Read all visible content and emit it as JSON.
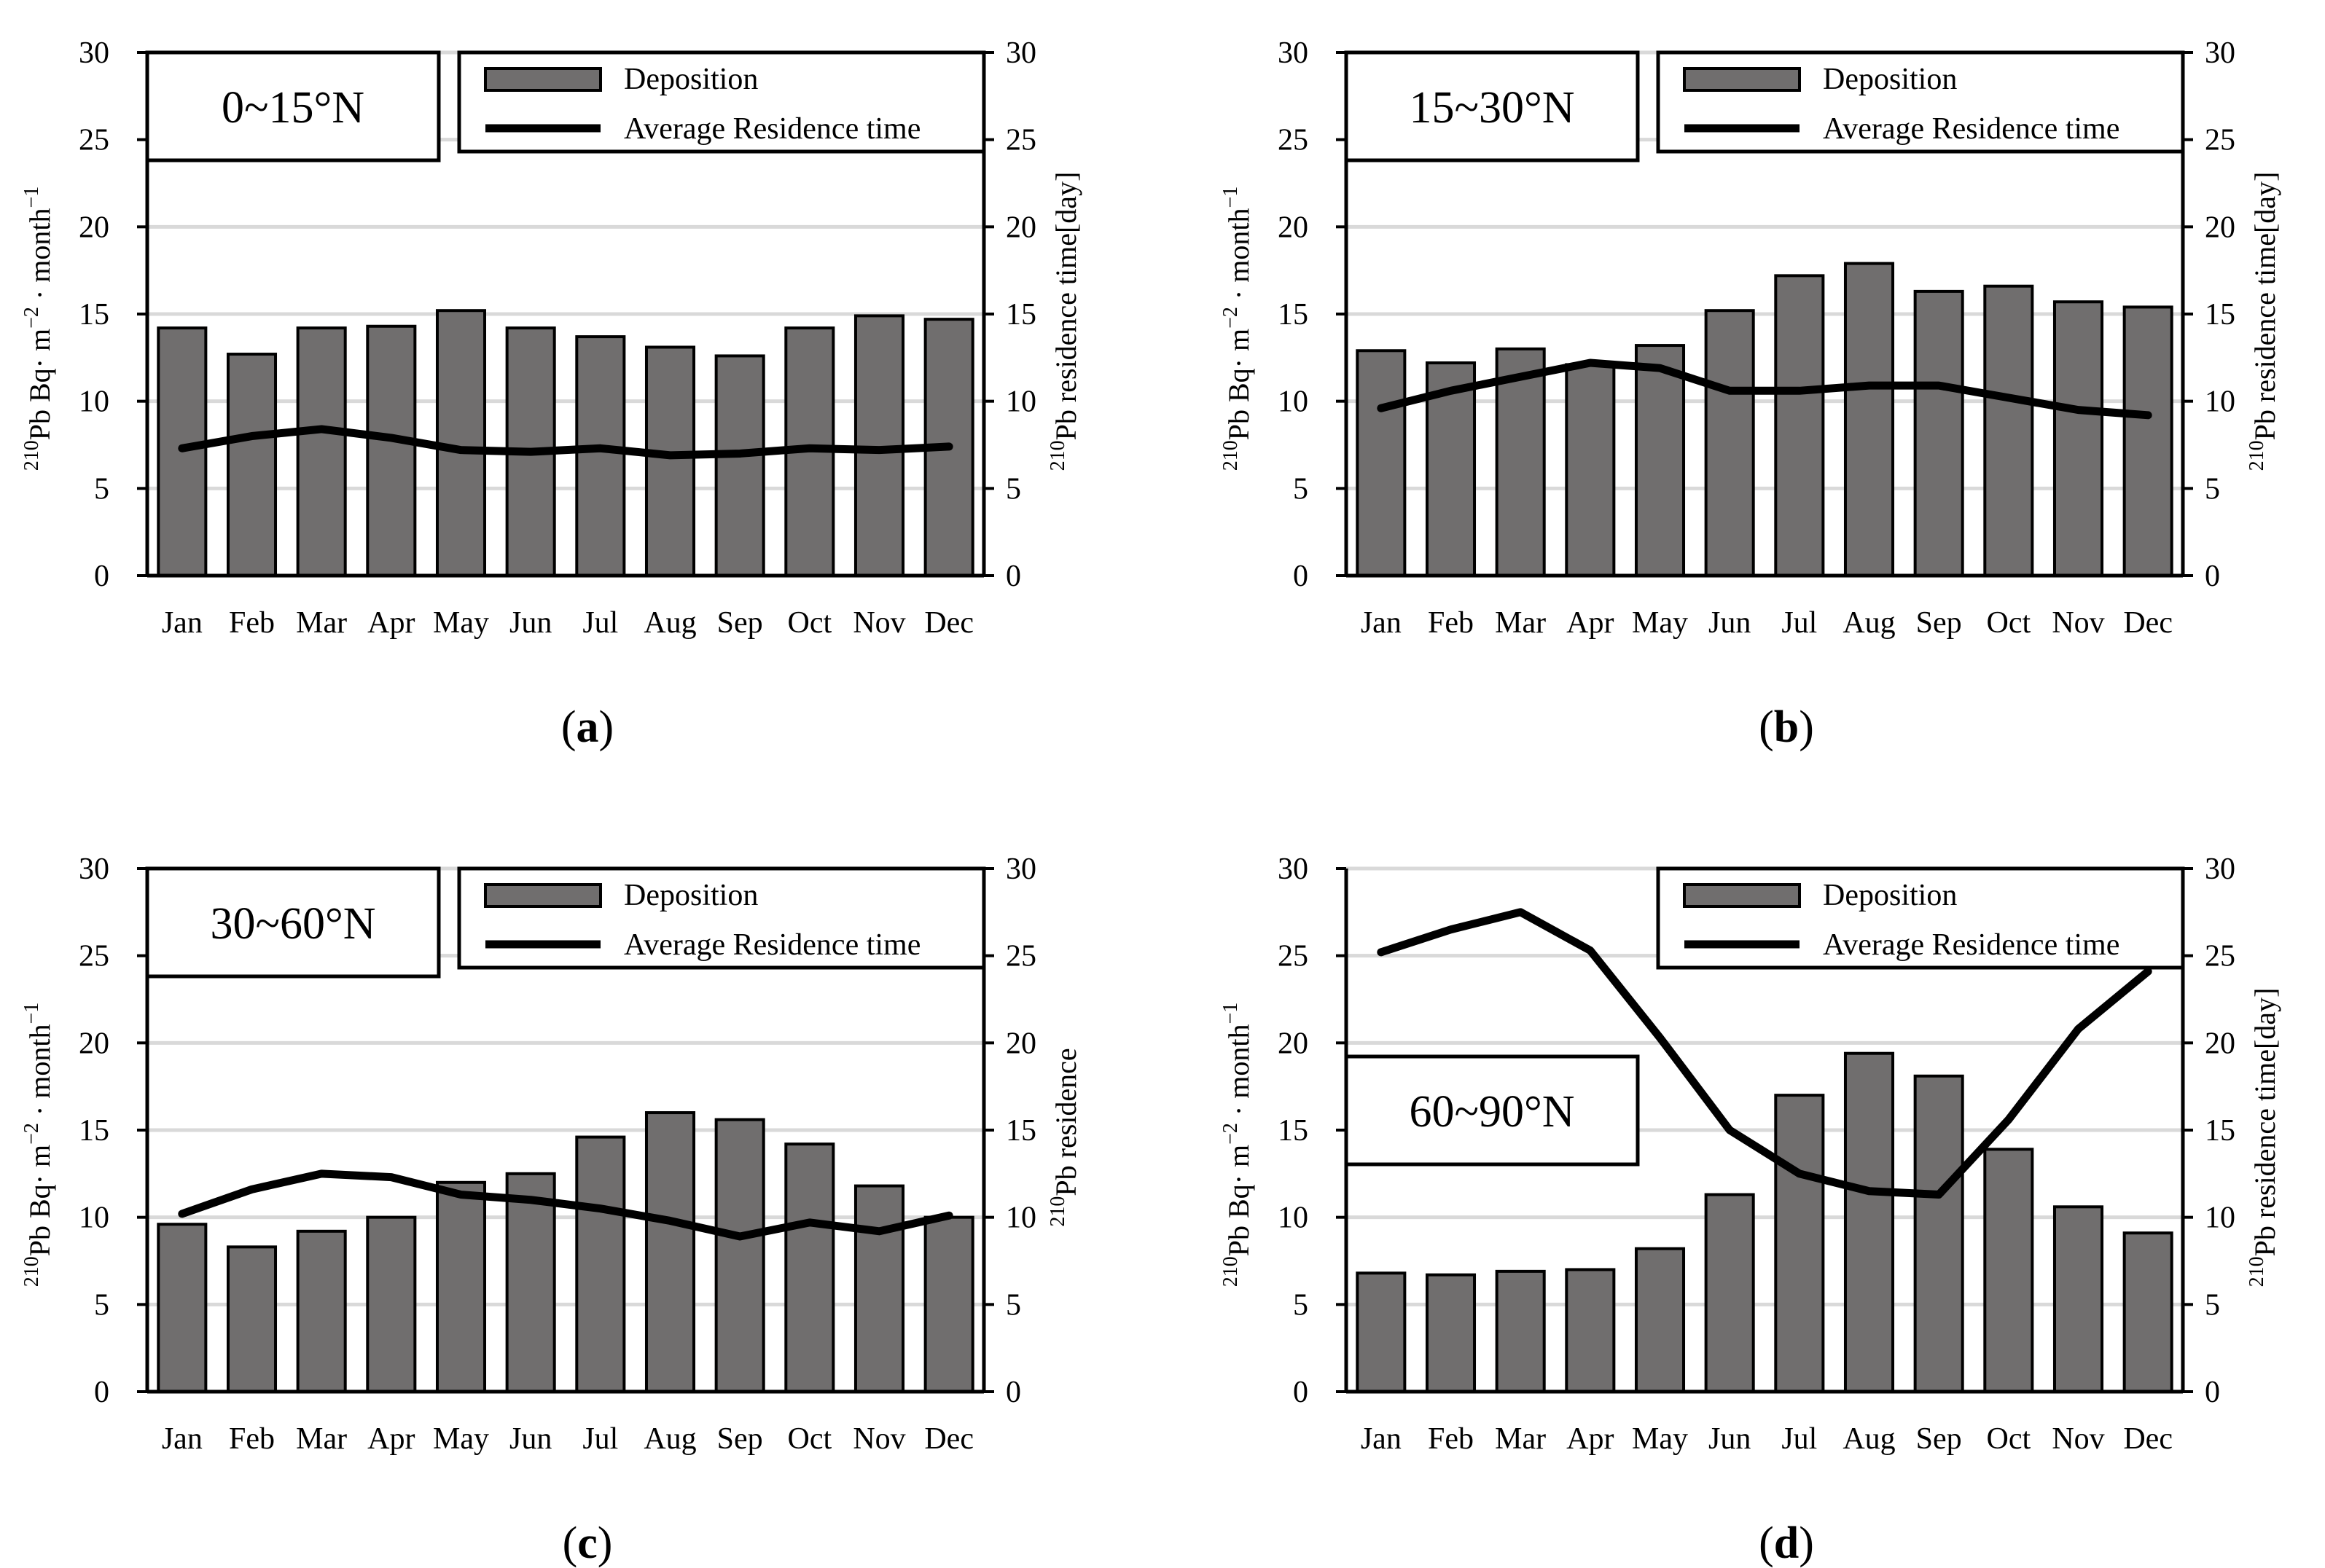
{
  "figure": {
    "colors": {
      "bar_fill": "#706e6e",
      "bar_stroke": "#000000",
      "line": "#000000",
      "grid": "#d9d9d9",
      "axis": "#000000",
      "background": "#ffffff"
    }
  },
  "chart_data": [
    {
      "type": "bar",
      "panel": "a",
      "caption": "(a)",
      "caption_letter": "a",
      "region_label": "0~15°N",
      "categories": [
        "Jan",
        "Feb",
        "Mar",
        "Apr",
        "May",
        "Jun",
        "Jul",
        "Aug",
        "Sep",
        "Oct",
        "Nov",
        "Dec"
      ],
      "series": [
        {
          "name": "Deposition",
          "kind": "bar",
          "axis": "left",
          "values": [
            14.2,
            12.7,
            14.2,
            14.3,
            15.2,
            14.2,
            13.7,
            13.1,
            12.6,
            14.2,
            14.9,
            14.7
          ]
        },
        {
          "name": "Average Residence time",
          "kind": "line",
          "axis": "right",
          "values": [
            7.3,
            8.0,
            8.4,
            7.9,
            7.2,
            7.1,
            7.3,
            6.9,
            7.0,
            7.3,
            7.2,
            7.4
          ]
        }
      ],
      "ylim": [
        0,
        30
      ],
      "y2lim": [
        0,
        30
      ],
      "yticks": [
        "0",
        "5",
        "10",
        "15",
        "20",
        "25",
        "30"
      ],
      "y2ticks": [
        "0",
        "5",
        "10",
        "15",
        "20",
        "25",
        "30"
      ],
      "ylabel_sup": "210",
      "ylabel": "Pb Bq· m",
      "ylabel_exp1": "−2",
      "ylabel_mid": " · month",
      "ylabel_exp2": "−1",
      "y2label_sup": "210",
      "y2label": "Pb  residence time[day]",
      "legend": [
        "Deposition",
        "Average Residence time"
      ],
      "legend_position": "top-right",
      "region_position": "top-left",
      "grid": true
    },
    {
      "type": "bar",
      "panel": "b",
      "caption": "(b)",
      "caption_letter": "b",
      "region_label": "15~30°N",
      "categories": [
        "Jan",
        "Feb",
        "Mar",
        "Apr",
        "May",
        "Jun",
        "Jul",
        "Aug",
        "Sep",
        "Oct",
        "Nov",
        "Dec"
      ],
      "series": [
        {
          "name": "Deposition",
          "kind": "bar",
          "axis": "left",
          "values": [
            12.9,
            12.2,
            13.0,
            12.1,
            13.2,
            15.2,
            17.2,
            17.9,
            16.3,
            16.6,
            15.7,
            15.4
          ]
        },
        {
          "name": "Average Residence time",
          "kind": "line",
          "axis": "right",
          "values": [
            9.6,
            10.6,
            11.4,
            12.2,
            11.9,
            10.6,
            10.6,
            10.9,
            10.9,
            10.2,
            9.5,
            9.2
          ]
        }
      ],
      "ylim": [
        0,
        30
      ],
      "y2lim": [
        0,
        30
      ],
      "yticks": [
        "0",
        "5",
        "10",
        "15",
        "20",
        "25",
        "30"
      ],
      "y2ticks": [
        "0",
        "5",
        "10",
        "15",
        "20",
        "25",
        "30"
      ],
      "ylabel_sup": "210",
      "ylabel": "Pb Bq· m",
      "ylabel_exp1": "−2",
      "ylabel_mid": " · month",
      "ylabel_exp2": "−1",
      "y2label_sup": "210",
      "y2label": "Pb  residence time[day]",
      "legend": [
        "Deposition",
        "Average Residence time"
      ],
      "legend_position": "top-right",
      "region_position": "top-left",
      "grid": true
    },
    {
      "type": "bar",
      "panel": "c",
      "caption": "(c)",
      "caption_letter": "c",
      "region_label": "30~60°N",
      "categories": [
        "Jan",
        "Feb",
        "Mar",
        "Apr",
        "May",
        "Jun",
        "Jul",
        "Aug",
        "Sep",
        "Oct",
        "Nov",
        "Dec"
      ],
      "series": [
        {
          "name": "Deposition",
          "kind": "bar",
          "axis": "left",
          "values": [
            9.6,
            8.3,
            9.2,
            10.0,
            12.0,
            12.5,
            14.6,
            16.0,
            15.6,
            14.2,
            11.8,
            10.0
          ]
        },
        {
          "name": "Average Residence time",
          "kind": "line",
          "axis": "right",
          "values": [
            10.2,
            11.6,
            12.5,
            12.3,
            11.3,
            11.0,
            10.5,
            9.8,
            8.9,
            9.7,
            9.2,
            10.1
          ]
        }
      ],
      "ylim": [
        0,
        30
      ],
      "y2lim": [
        0,
        30
      ],
      "yticks": [
        "0",
        "5",
        "10",
        "15",
        "20",
        "25",
        "30"
      ],
      "y2ticks": [
        "0",
        "5",
        "10",
        "15",
        "20",
        "25",
        "30"
      ],
      "ylabel_sup": "210",
      "ylabel": "Pb Bq· m",
      "ylabel_exp1": "−2",
      "ylabel_mid": " · month",
      "ylabel_exp2": "−1",
      "y2label_sup": "210",
      "y2label": "Pb  residence",
      "legend": [
        "Deposition",
        "Average Residence time"
      ],
      "legend_position": "top-right",
      "region_position": "top-left",
      "grid": true
    },
    {
      "type": "bar",
      "panel": "d",
      "caption": "(d)",
      "caption_letter": "d",
      "region_label": "60~90°N",
      "categories": [
        "Jan",
        "Feb",
        "Mar",
        "Apr",
        "May",
        "Jun",
        "Jul",
        "Aug",
        "Sep",
        "Oct",
        "Nov",
        "Dec"
      ],
      "series": [
        {
          "name": "Deposition",
          "kind": "bar",
          "axis": "left",
          "values": [
            6.8,
            6.7,
            6.9,
            7.0,
            8.2,
            11.3,
            17.0,
            19.4,
            18.1,
            13.9,
            10.6,
            9.1
          ]
        },
        {
          "name": "Average Residence time",
          "kind": "line",
          "axis": "right",
          "values": [
            25.2,
            26.5,
            27.5,
            25.3,
            20.3,
            15.0,
            12.5,
            11.5,
            11.3,
            15.6,
            20.8,
            24.1
          ]
        }
      ],
      "ylim": [
        0,
        30
      ],
      "y2lim": [
        0,
        30
      ],
      "yticks": [
        "0",
        "5",
        "10",
        "15",
        "20",
        "25",
        "30"
      ],
      "y2ticks": [
        "0",
        "5",
        "10",
        "15",
        "20",
        "25",
        "30"
      ],
      "ylabel_sup": "210",
      "ylabel": "Pb Bq· m",
      "ylabel_exp1": "−2",
      "ylabel_mid": " · month",
      "ylabel_exp2": "−1",
      "y2label_sup": "210",
      "y2label": "Pb  residence time[day]",
      "legend": [
        "Deposition",
        "Average Residence time"
      ],
      "legend_position": "top-right",
      "region_position": "middle-left",
      "grid": true
    }
  ]
}
